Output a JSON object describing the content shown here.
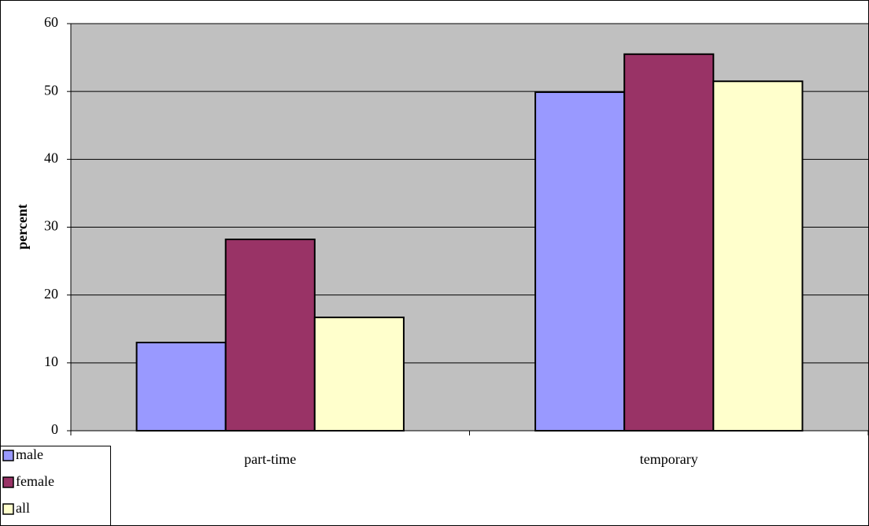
{
  "chart_data": {
    "type": "bar",
    "y_label": "percent",
    "categories": [
      "part-time",
      "temporary"
    ],
    "series": [
      {
        "name": "male",
        "color": "#9999ff",
        "values": [
          13.0,
          49.9
        ]
      },
      {
        "name": "female",
        "color": "#993366",
        "values": [
          28.2,
          55.5
        ]
      },
      {
        "name": "all",
        "color": "#ffffcc",
        "values": [
          16.7,
          51.5
        ]
      }
    ],
    "ylim": [
      0,
      60
    ],
    "yticks": [
      0,
      10,
      20,
      30,
      40,
      50,
      60
    ],
    "grid": true,
    "background": "#c0c0c0",
    "legend": "bottom-left"
  }
}
